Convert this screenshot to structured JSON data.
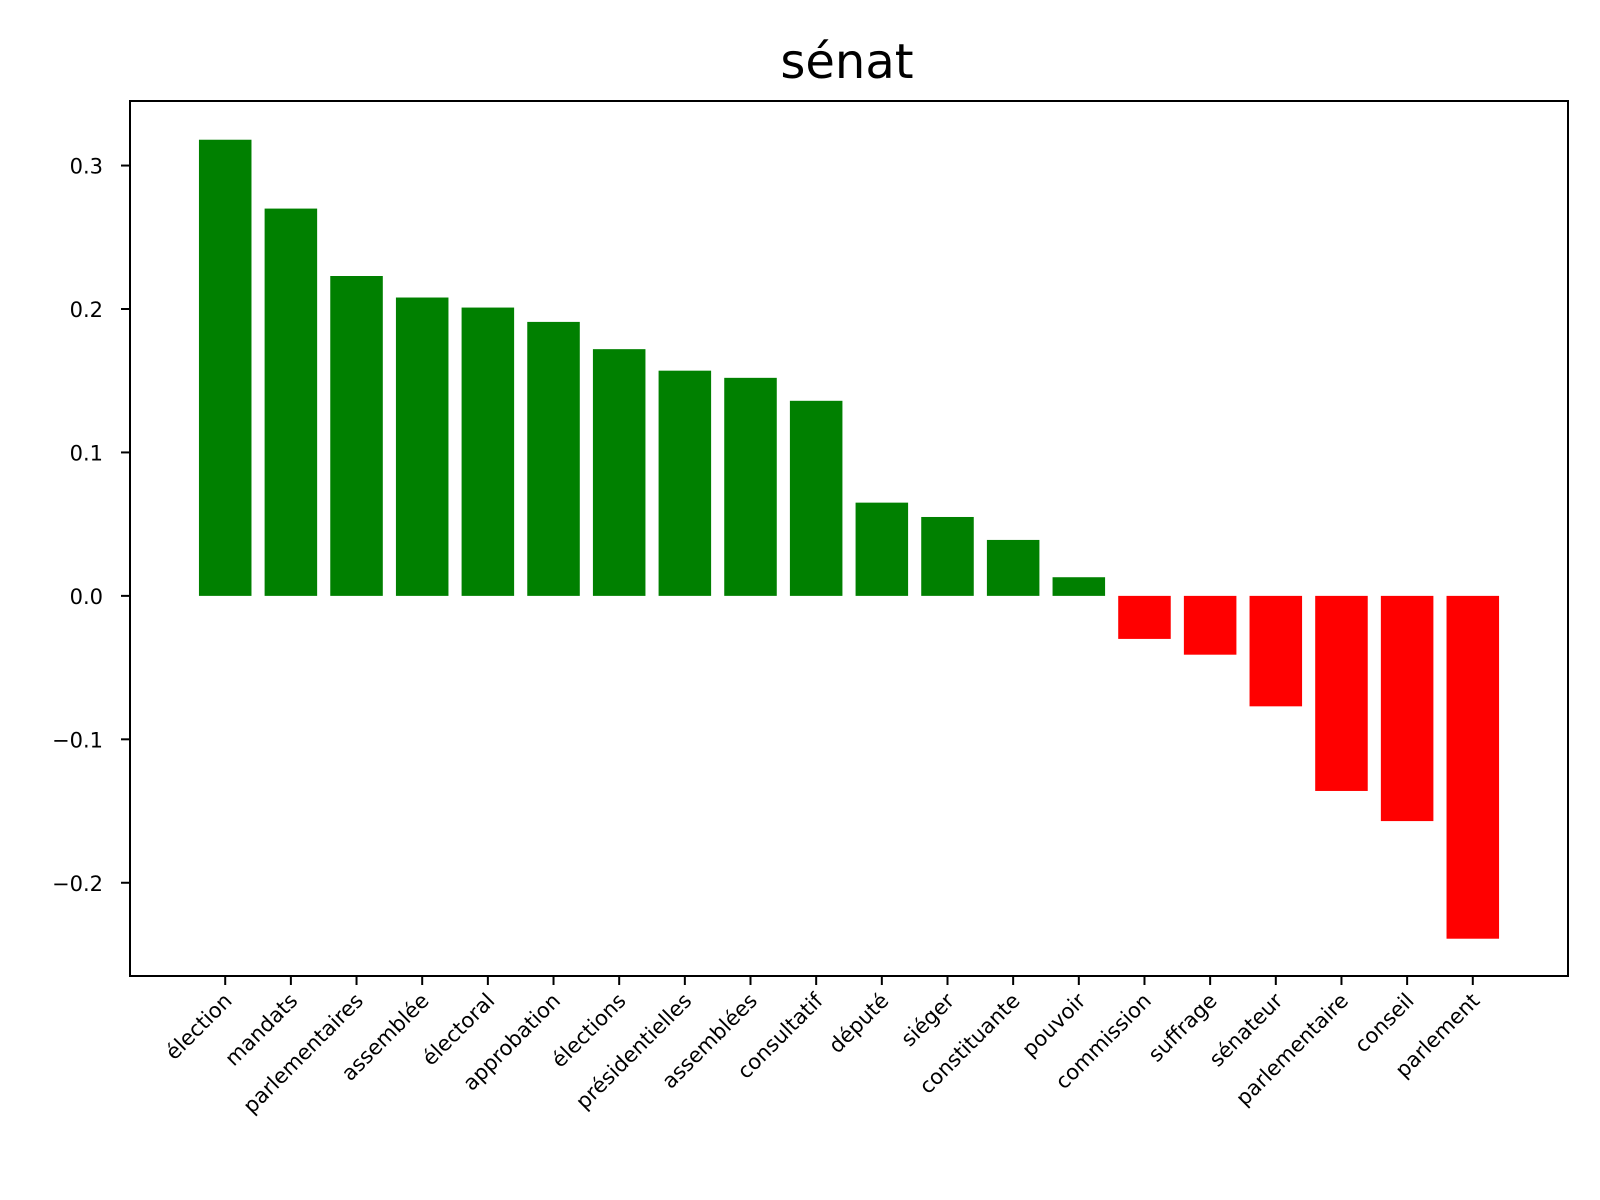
{
  "chart_data": {
    "type": "bar",
    "title": "sénat",
    "xlabel": "",
    "ylabel": "",
    "ylim": [
      -0.265,
      0.345
    ],
    "yticks": [
      {
        "value": 0.3,
        "label": "0.3"
      },
      {
        "value": 0.2,
        "label": "0.2"
      },
      {
        "value": 0.1,
        "label": "0.1"
      },
      {
        "value": 0.0,
        "label": "0.0"
      },
      {
        "value": -0.1,
        "label": "−0.1"
      },
      {
        "value": -0.2,
        "label": "−0.2"
      }
    ],
    "categories": [
      "élection",
      "mandats",
      "parlementaires",
      "assemblée",
      "électoral",
      "approbation",
      "élections",
      "présidentielles",
      "assemblées",
      "consultatif",
      "député",
      "siéger",
      "constituante",
      "pouvoir",
      "commission",
      "suffrage",
      "sénateur",
      "parlementaire",
      "conseil",
      "parlement"
    ],
    "values": [
      0.318,
      0.27,
      0.223,
      0.208,
      0.201,
      0.191,
      0.172,
      0.157,
      0.152,
      0.136,
      0.065,
      0.055,
      0.039,
      0.013,
      -0.03,
      -0.041,
      -0.077,
      -0.136,
      -0.157,
      -0.239
    ],
    "colors": {
      "positive": "#008000",
      "negative": "#ff0000"
    },
    "grid": false,
    "legend": "none"
  }
}
